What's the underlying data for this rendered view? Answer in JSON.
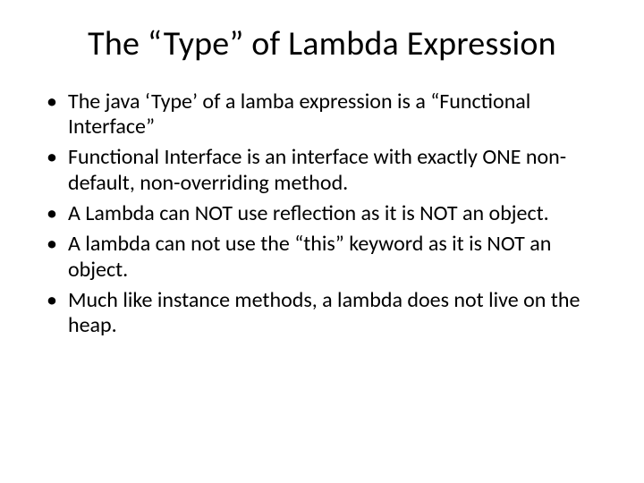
{
  "slide": {
    "title": "The “Type” of Lambda Expression",
    "title_fontsize": 38,
    "title_color": "#000000",
    "bullets": [
      "The java ‘Type’ of a lamba expression is a “Functional Interface”",
      "Functional Interface is an interface with exactly ONE non-default, non-overriding method.",
      "A Lambda can NOT use reflection as it is NOT an object.",
      "A lambda can not use the “this” keyword as it is NOT an object.",
      "Much like instance methods, a lambda does not live on the heap."
    ],
    "bullet_fontsize": 24,
    "bullet_color": "#000000",
    "background_color": "#ffffff"
  }
}
